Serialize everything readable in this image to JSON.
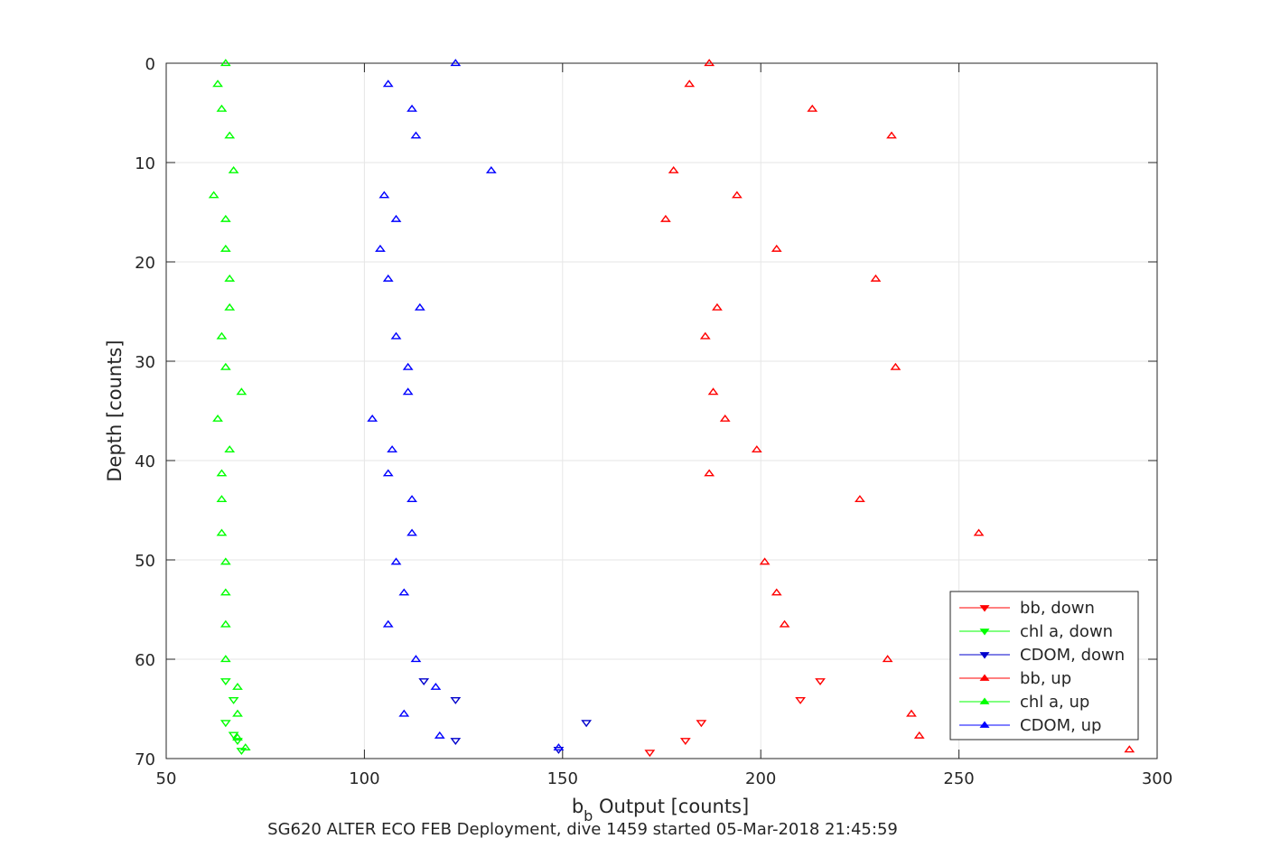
{
  "chart_data": {
    "type": "scatter",
    "xlabel_main": "b",
    "xlabel_sub": "b",
    "xlabel_rest": " Output [counts]",
    "ylabel": "Depth [counts]",
    "caption": "SG620 ALTER ECO FEB Deployment, dive 1459 started 05-Mar-2018 21:45:59",
    "xlim": [
      50,
      300
    ],
    "ylim": [
      0,
      70
    ],
    "y_reversed": true,
    "grid": true,
    "x_ticks": [
      50,
      100,
      150,
      200,
      250,
      300
    ],
    "y_ticks": [
      0,
      10,
      20,
      30,
      40,
      50,
      60,
      70
    ],
    "legend_position": "bottom-right",
    "series": [
      {
        "name": "bb, down",
        "color": "#ff0000",
        "marker": "triangle-down",
        "points": [
          [
            172,
            69.4
          ],
          [
            181,
            68.2
          ],
          [
            185,
            66.4
          ],
          [
            210,
            64.1
          ],
          [
            215,
            62.2
          ]
        ]
      },
      {
        "name": "chl a, down",
        "color": "#00ff00",
        "marker": "triangle-down",
        "points": [
          [
            69,
            69.2
          ],
          [
            68,
            68.2
          ],
          [
            67,
            67.6
          ],
          [
            65,
            66.4
          ],
          [
            67,
            64.1
          ],
          [
            65,
            62.2
          ]
        ]
      },
      {
        "name": "CDOM, down",
        "color": "#0000cc",
        "marker": "triangle-down",
        "points": [
          [
            149,
            69.1
          ],
          [
            123,
            68.2
          ],
          [
            156,
            66.4
          ],
          [
            123,
            64.1
          ],
          [
            115,
            62.2
          ]
        ]
      },
      {
        "name": "bb, up",
        "color": "#ff0000",
        "marker": "triangle-up",
        "points": [
          [
            187,
            0
          ],
          [
            182,
            2.1
          ],
          [
            213,
            4.6
          ],
          [
            233,
            7.3
          ],
          [
            178,
            10.8
          ],
          [
            194,
            13.3
          ],
          [
            176,
            15.7
          ],
          [
            204,
            18.7
          ],
          [
            229,
            21.7
          ],
          [
            189,
            24.6
          ],
          [
            186,
            27.5
          ],
          [
            234,
            30.6
          ],
          [
            188,
            33.1
          ],
          [
            191,
            35.8
          ],
          [
            199,
            38.9
          ],
          [
            187,
            41.3
          ],
          [
            225,
            43.9
          ],
          [
            255,
            47.3
          ],
          [
            201,
            50.2
          ],
          [
            204,
            53.3
          ],
          [
            206,
            56.5
          ],
          [
            232,
            60.0
          ],
          [
            238,
            65.5
          ],
          [
            240,
            67.7
          ],
          [
            293,
            69.1
          ]
        ]
      },
      {
        "name": "chl a, up",
        "color": "#00ff00",
        "marker": "triangle-up",
        "points": [
          [
            65,
            0
          ],
          [
            63,
            2.1
          ],
          [
            64,
            4.6
          ],
          [
            66,
            7.3
          ],
          [
            67,
            10.8
          ],
          [
            62,
            13.3
          ],
          [
            65,
            15.7
          ],
          [
            65,
            18.7
          ],
          [
            66,
            21.7
          ],
          [
            66,
            24.6
          ],
          [
            64,
            27.5
          ],
          [
            65,
            30.6
          ],
          [
            69,
            33.1
          ],
          [
            63,
            35.8
          ],
          [
            66,
            38.9
          ],
          [
            64,
            41.3
          ],
          [
            64,
            43.9
          ],
          [
            64,
            47.3
          ],
          [
            65,
            50.2
          ],
          [
            65,
            53.3
          ],
          [
            65,
            56.5
          ],
          [
            65,
            60.0
          ],
          [
            68,
            62.8
          ],
          [
            68,
            65.5
          ],
          [
            68,
            67.9
          ],
          [
            70,
            68.9
          ]
        ]
      },
      {
        "name": "CDOM, up",
        "color": "#0000ff",
        "marker": "triangle-up",
        "points": [
          [
            123,
            0
          ],
          [
            106,
            2.1
          ],
          [
            112,
            4.6
          ],
          [
            113,
            7.3
          ],
          [
            132,
            10.8
          ],
          [
            105,
            13.3
          ],
          [
            108,
            15.7
          ],
          [
            104,
            18.7
          ],
          [
            106,
            21.7
          ],
          [
            114,
            24.6
          ],
          [
            108,
            27.5
          ],
          [
            111,
            30.6
          ],
          [
            111,
            33.1
          ],
          [
            102,
            35.8
          ],
          [
            107,
            38.9
          ],
          [
            106,
            41.3
          ],
          [
            112,
            43.9
          ],
          [
            112,
            47.3
          ],
          [
            108,
            50.2
          ],
          [
            110,
            53.3
          ],
          [
            106,
            56.5
          ],
          [
            113,
            60.0
          ],
          [
            118,
            62.8
          ],
          [
            110,
            65.5
          ],
          [
            119,
            67.7
          ],
          [
            149,
            68.9
          ]
        ]
      }
    ]
  }
}
